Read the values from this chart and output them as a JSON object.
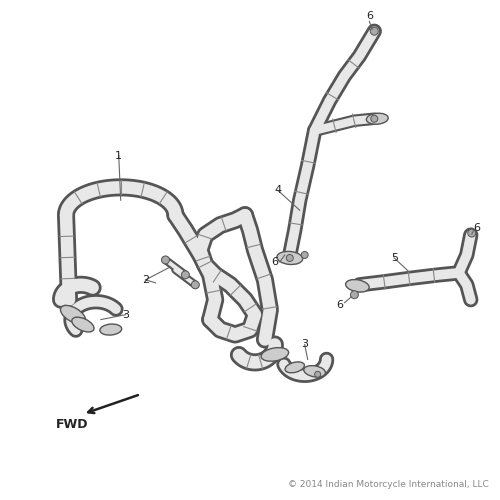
{
  "background_color": "#ffffff",
  "copyright_text": "© 2014 Indian Motorcycle International, LLC",
  "copyright_fontsize": 6.5,
  "fwd_text": "FWD",
  "line_color": "#555555",
  "inner_color": "#e8e8e8",
  "label_fontsize": 8,
  "label_color": "#222222",
  "rib_color": "#888888",
  "mount_color": "#cccccc"
}
